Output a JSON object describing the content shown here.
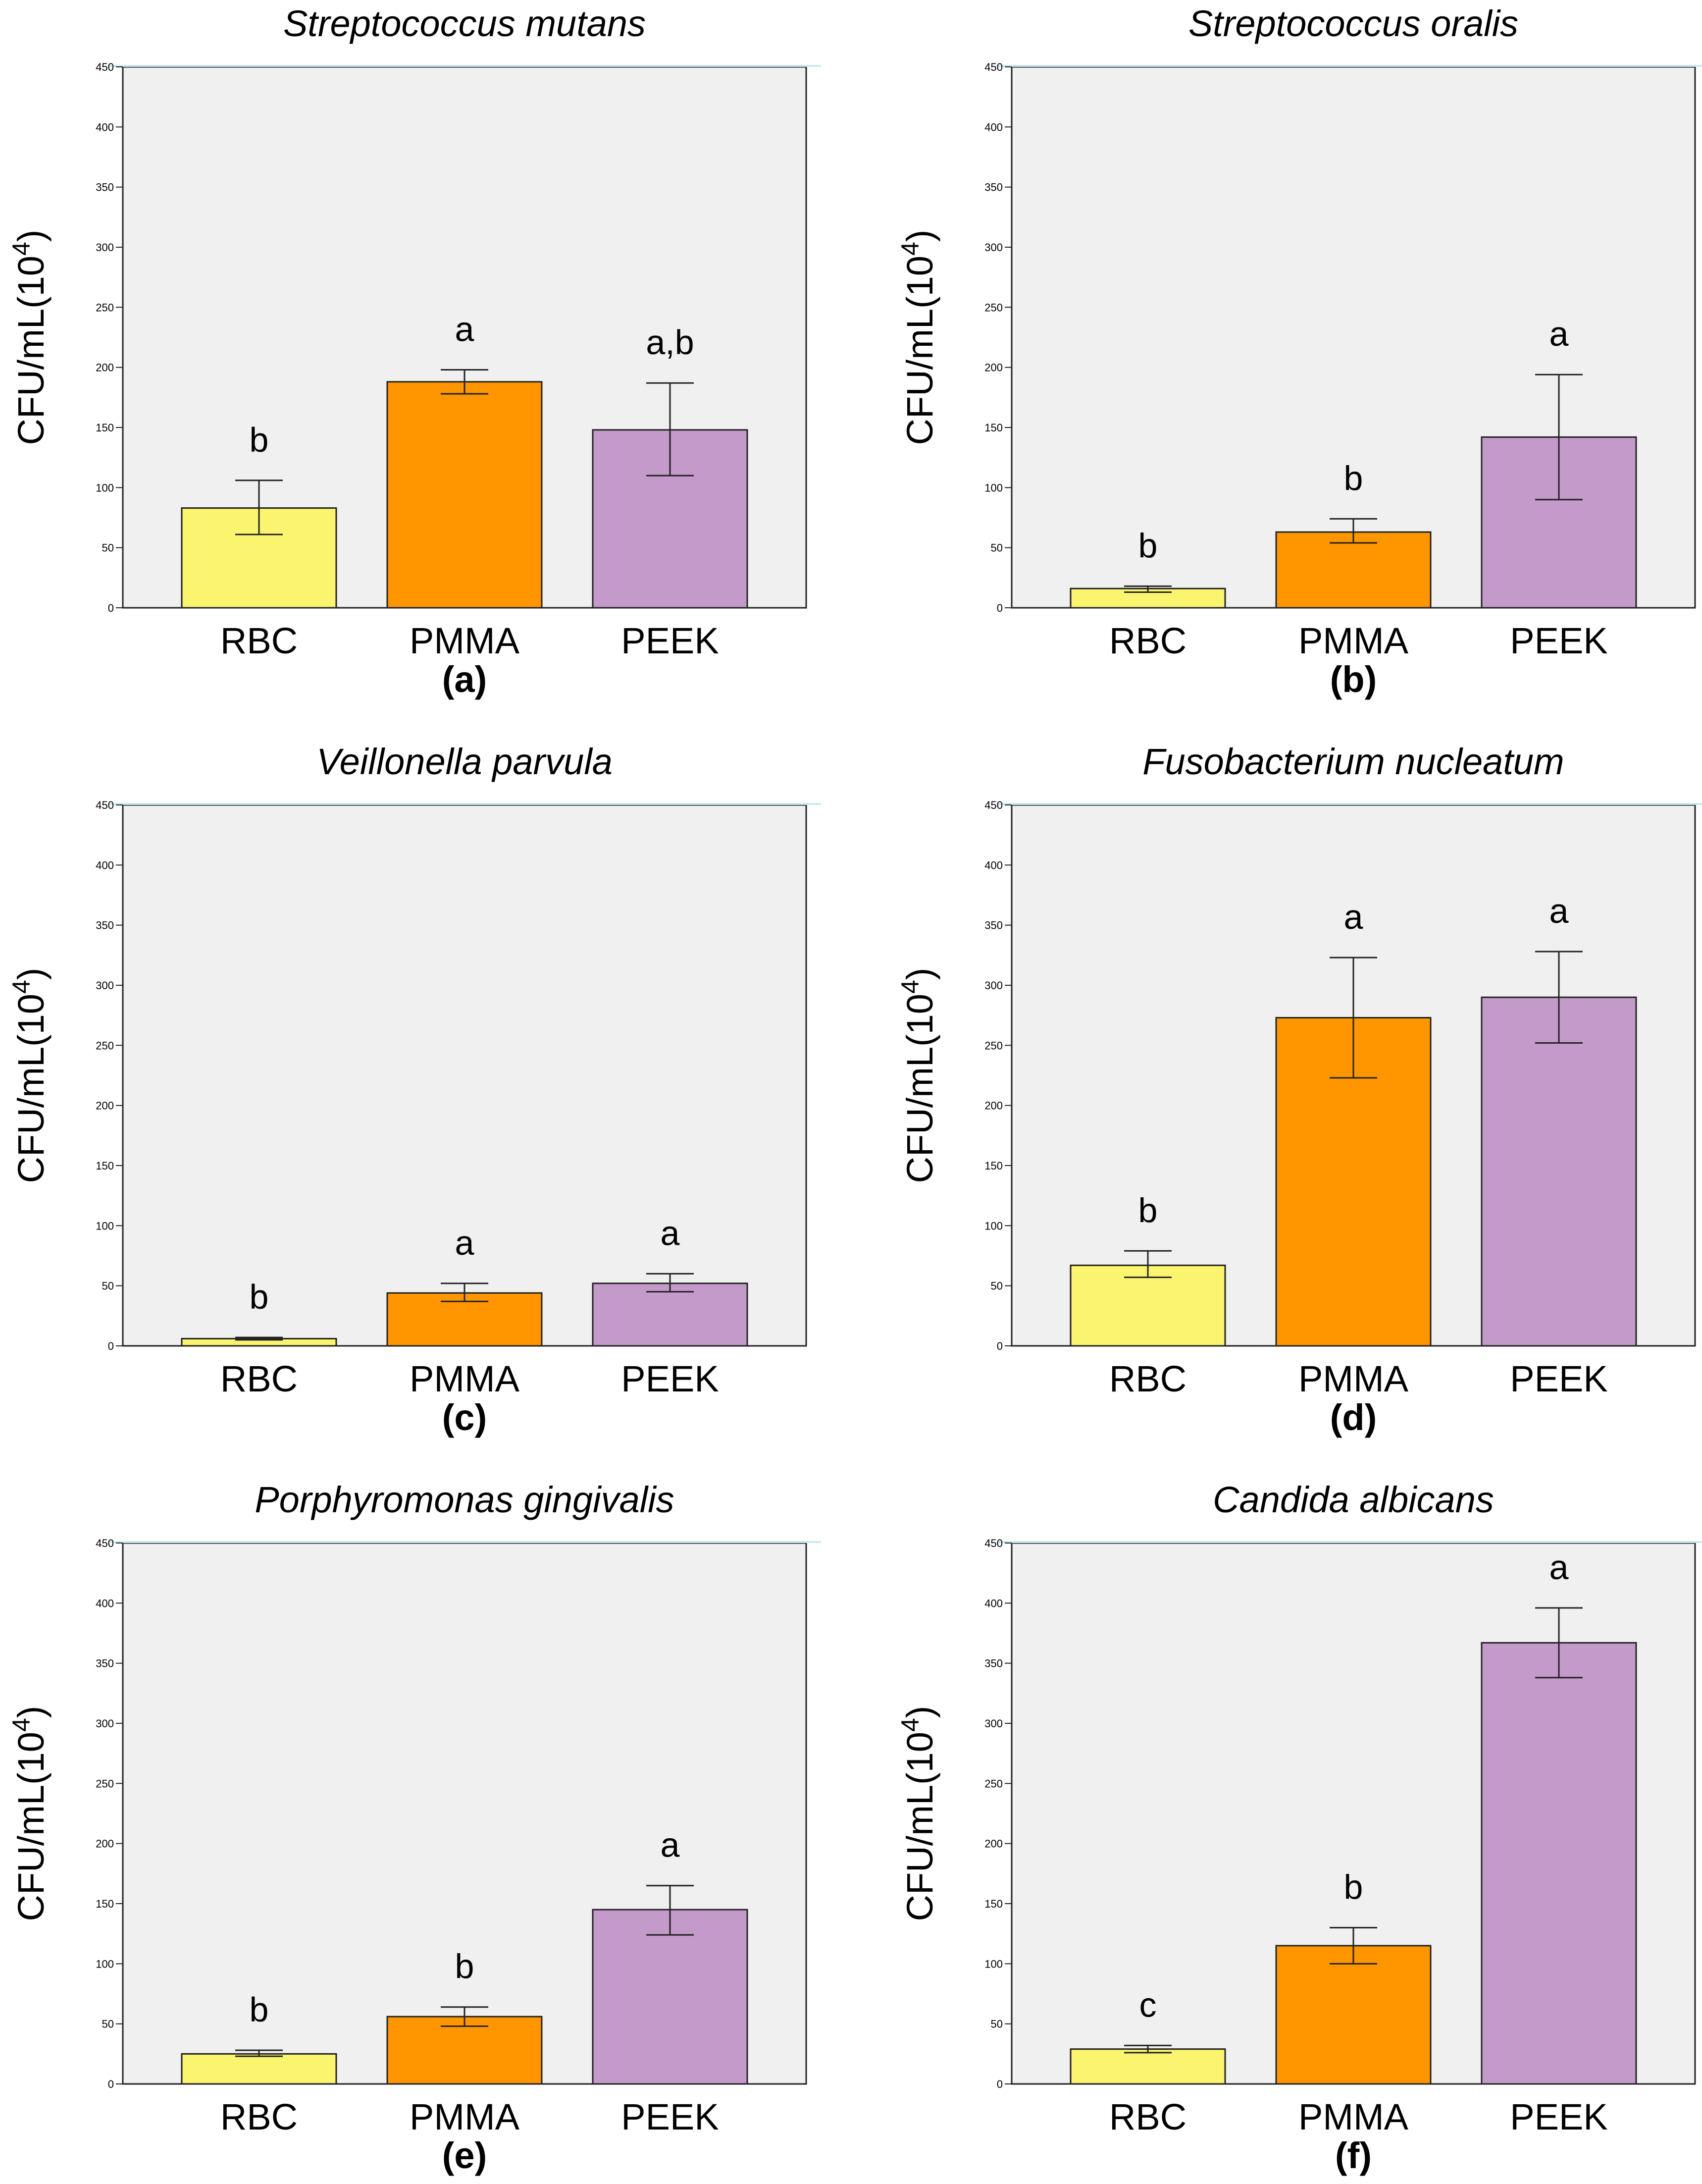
{
  "colors": {
    "plot_background": "#f0f0f0",
    "bar_RBC": "#fbf46e",
    "bar_PMMA": "#ff9600",
    "bar_PEEK": "#c49aca",
    "axis": "#222222",
    "top_accent": "#c8eaf2"
  },
  "chart_data": [
    {
      "type": "bar",
      "panel": "(a)",
      "title": "Streptococcus mutans",
      "ylabel_base": "CFU/mL(10",
      "ylabel_exp": "4",
      "ylabel_close": ")",
      "categories": [
        "RBC",
        "PMMA",
        "PEEK"
      ],
      "values": [
        83,
        188,
        148
      ],
      "error_low": [
        61,
        178,
        110
      ],
      "error_high": [
        106,
        198,
        187
      ],
      "significance": [
        "b",
        "a",
        "a,b"
      ],
      "ylim": [
        0,
        450
      ],
      "yticks": [
        "0",
        "50",
        "100",
        "150",
        "200",
        "250",
        "300",
        "350",
        "400",
        "450"
      ]
    },
    {
      "type": "bar",
      "panel": "(b)",
      "title": "Streptococcus oralis",
      "ylabel_base": "CFU/mL(10",
      "ylabel_exp": "4",
      "ylabel_close": ")",
      "categories": [
        "RBC",
        "PMMA",
        "PEEK"
      ],
      "values": [
        16,
        63,
        142
      ],
      "error_low": [
        13,
        54,
        90
      ],
      "error_high": [
        18,
        74,
        194
      ],
      "significance": [
        "b",
        "b",
        "a"
      ],
      "ylim": [
        0,
        450
      ],
      "yticks": [
        "0",
        "50",
        "100",
        "150",
        "200",
        "250",
        "300",
        "350",
        "400",
        "450"
      ]
    },
    {
      "type": "bar",
      "panel": "(c)",
      "title": "Veillonella parvula",
      "ylabel_base": "CFU/mL(10",
      "ylabel_exp": "4",
      "ylabel_close": ")",
      "categories": [
        "RBC",
        "PMMA",
        "PEEK"
      ],
      "values": [
        6,
        44,
        52
      ],
      "error_low": [
        5,
        37,
        45
      ],
      "error_high": [
        7,
        52,
        60
      ],
      "significance": [
        "b",
        "a",
        "a"
      ],
      "ylim": [
        0,
        450
      ],
      "yticks": [
        "0",
        "50",
        "100",
        "150",
        "200",
        "250",
        "300",
        "350",
        "400",
        "450"
      ]
    },
    {
      "type": "bar",
      "panel": "(d)",
      "title": "Fusobacterium nucleatum",
      "ylabel_base": "CFU/mL(10",
      "ylabel_exp": "4",
      "ylabel_close": ")",
      "categories": [
        "RBC",
        "PMMA",
        "PEEK"
      ],
      "values": [
        67,
        273,
        290
      ],
      "error_low": [
        57,
        223,
        252
      ],
      "error_high": [
        79,
        323,
        328
      ],
      "significance": [
        "b",
        "a",
        "a"
      ],
      "ylim": [
        0,
        450
      ],
      "yticks": [
        "0",
        "50",
        "100",
        "150",
        "200",
        "250",
        "300",
        "350",
        "400",
        "450"
      ]
    },
    {
      "type": "bar",
      "panel": "(e)",
      "title": "Porphyromonas gingivalis",
      "ylabel_base": "CFU/mL(10",
      "ylabel_exp": "4",
      "ylabel_close": ")",
      "categories": [
        "RBC",
        "PMMA",
        "PEEK"
      ],
      "values": [
        25,
        56,
        145
      ],
      "error_low": [
        23,
        48,
        124
      ],
      "error_high": [
        28,
        64,
        165
      ],
      "significance": [
        "b",
        "b",
        "a"
      ],
      "ylim": [
        0,
        450
      ],
      "yticks": [
        "0",
        "50",
        "100",
        "150",
        "200",
        "250",
        "300",
        "350",
        "400",
        "450"
      ]
    },
    {
      "type": "bar",
      "panel": "(f)",
      "title": "Candida albicans",
      "ylabel_base": "CFU/mL(10",
      "ylabel_exp": "4",
      "ylabel_close": ")",
      "categories": [
        "RBC",
        "PMMA",
        "PEEK"
      ],
      "values": [
        29,
        115,
        367
      ],
      "error_low": [
        26,
        100,
        338
      ],
      "error_high": [
        32,
        130,
        396
      ],
      "significance": [
        "c",
        "b",
        "a"
      ],
      "ylim": [
        0,
        450
      ],
      "yticks": [
        "0",
        "50",
        "100",
        "150",
        "200",
        "250",
        "300",
        "350",
        "400",
        "450"
      ]
    }
  ]
}
